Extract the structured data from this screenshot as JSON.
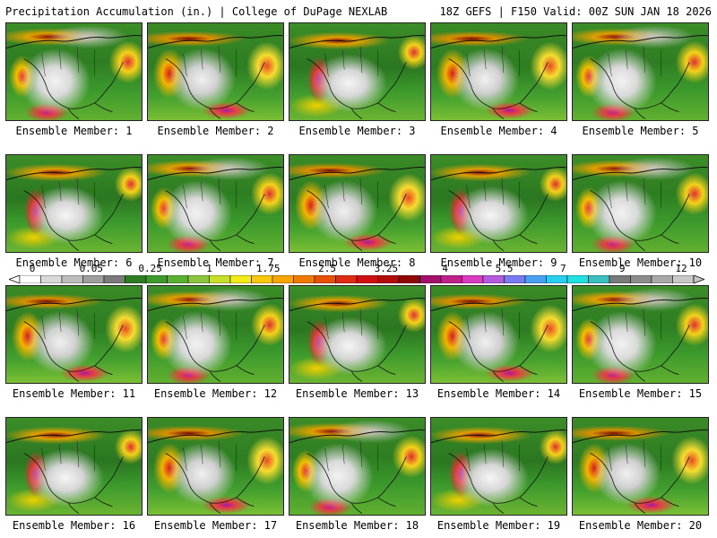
{
  "header": {
    "title_left": "Precipitation Accumulation (in.) | College of DuPage NEXLAB",
    "title_right": "18Z GEFS | F150 Valid: 00Z SUN JAN 18 2026"
  },
  "panels": [
    {
      "label": "Ensemble Member: 1"
    },
    {
      "label": "Ensemble Member: 2"
    },
    {
      "label": "Ensemble Member: 3"
    },
    {
      "label": "Ensemble Member: 4"
    },
    {
      "label": "Ensemble Member: 5"
    },
    {
      "label": "Ensemble Member: 6"
    },
    {
      "label": "Ensemble Member: 7"
    },
    {
      "label": "Ensemble Member: 8"
    },
    {
      "label": "Ensemble Member: 9"
    },
    {
      "label": "Ensemble Member: 10"
    },
    {
      "label": "Ensemble Member: 11"
    },
    {
      "label": "Ensemble Member: 12"
    },
    {
      "label": "Ensemble Member: 13"
    },
    {
      "label": "Ensemble Member: 14"
    },
    {
      "label": "Ensemble Member: 15"
    },
    {
      "label": "Ensemble Member: 16"
    },
    {
      "label": "Ensemble Member: 17"
    },
    {
      "label": "Ensemble Member: 18"
    },
    {
      "label": "Ensemble Member: 19"
    },
    {
      "label": "Ensemble Member: 20"
    }
  ],
  "colorbar": {
    "tick_labels": [
      "0",
      "0.05",
      "0.25",
      "1",
      "1.75",
      "2.5",
      "3.25",
      "4",
      "5.5",
      "7",
      "9",
      "12"
    ],
    "colors": [
      "#ffffff",
      "#d9d9d9",
      "#bdbdbd",
      "#9e9e9e",
      "#7a7a7a",
      "#2e7d23",
      "#3c9a2c",
      "#5ab032",
      "#8cc63f",
      "#c6df2a",
      "#f3ea1a",
      "#f9c80e",
      "#f7a600",
      "#f07a00",
      "#e85100",
      "#e02b14",
      "#d01010",
      "#b30a0a",
      "#8f0808",
      "#a3106a",
      "#c0208a",
      "#d83cc0",
      "#b45ae0",
      "#7a7af0",
      "#4aa0f0",
      "#28d0f0",
      "#20e0e0",
      "#3ac0c0",
      "#7a7a7a",
      "#8c8c8c",
      "#a8a8a8",
      "#c8c8c8"
    ]
  }
}
